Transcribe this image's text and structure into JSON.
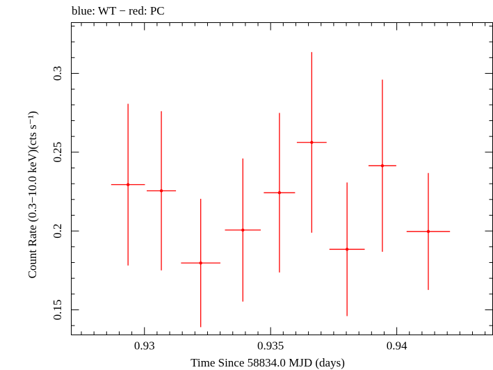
{
  "chart_data": {
    "type": "scatter",
    "title": "blue: WT − red: PC",
    "xlabel": "Time Since 58834.0 MJD (days)",
    "ylabel": "Count Rate (0.3−10.0 keV)(cts s⁻¹)",
    "xlim": [
      0.9271,
      0.9438
    ],
    "ylim": [
      0.1341,
      0.3322
    ],
    "xticks": [
      0.93,
      0.935,
      0.94
    ],
    "xtick_labels": [
      "0.93",
      "0.935",
      "0.94"
    ],
    "yticks": [
      0.15,
      0.2,
      0.25,
      0.3
    ],
    "ytick_labels": [
      "0.15",
      "0.2",
      "0.25",
      "0.3"
    ],
    "grid": false,
    "series": [
      {
        "color": "#ff0000",
        "points": [
          {
            "x": 0.92935,
            "y": 0.2294,
            "xerr": 0.00067,
            "yerr_lo": 0.0513,
            "yerr_hi": 0.0513
          },
          {
            "x": 0.93067,
            "y": 0.2255,
            "xerr": 0.00058,
            "yerr_lo": 0.0505,
            "yerr_hi": 0.0505
          },
          {
            "x": 0.93223,
            "y": 0.1797,
            "xerr": 0.00078,
            "yerr_lo": 0.0407,
            "yerr_hi": 0.0407
          },
          {
            "x": 0.9339,
            "y": 0.2006,
            "xerr": 0.00071,
            "yerr_lo": 0.0454,
            "yerr_hi": 0.0454
          },
          {
            "x": 0.93535,
            "y": 0.2243,
            "xerr": 0.00062,
            "yerr_lo": 0.0506,
            "yerr_hi": 0.0506
          },
          {
            "x": 0.93663,
            "y": 0.2562,
            "xerr": 0.00059,
            "yerr_lo": 0.0573,
            "yerr_hi": 0.0573
          },
          {
            "x": 0.93803,
            "y": 0.1884,
            "xerr": 0.0007,
            "yerr_lo": 0.0424,
            "yerr_hi": 0.0424
          },
          {
            "x": 0.93943,
            "y": 0.2414,
            "xerr": 0.00055,
            "yerr_lo": 0.0546,
            "yerr_hi": 0.0546
          },
          {
            "x": 0.94125,
            "y": 0.1997,
            "xerr": 0.00086,
            "yerr_lo": 0.0371,
            "yerr_hi": 0.0371
          }
        ]
      }
    ]
  }
}
